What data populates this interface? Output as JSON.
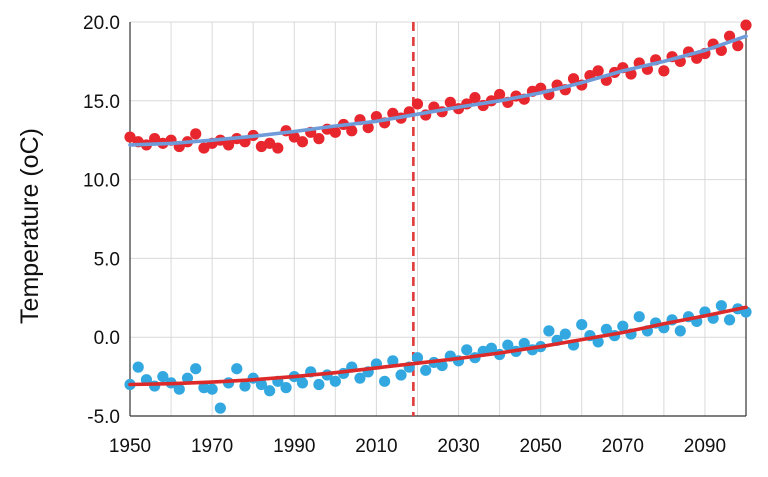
{
  "chart_data": {
    "type": "scatter",
    "title": "",
    "xlabel": "",
    "ylabel": "Temperature (oC)",
    "xlim": [
      1950,
      2100
    ],
    "ylim": [
      -5.0,
      20.0
    ],
    "grid": true,
    "legend": "none",
    "x_ticks": [
      "1950",
      "1970",
      "1990",
      "2010",
      "2030",
      "2050",
      "2070",
      "2090"
    ],
    "y_ticks": [
      "20.0",
      "15.0",
      "10.0",
      "5.0",
      "0.0",
      "-5.0"
    ],
    "reference_line": {
      "x": 2019,
      "color": "#e03a3a",
      "style": "dashed"
    },
    "colors": {
      "upper_points": "#e8262d",
      "upper_trend": "#6f9bd8",
      "lower_points": "#33a8e0",
      "lower_trend": "#dc2a2a",
      "grid": "#d9d9d9"
    },
    "series": [
      {
        "role": "upper-points",
        "x": [
          1950,
          1952,
          1954,
          1956,
          1958,
          1960,
          1962,
          1964,
          1966,
          1968,
          1970,
          1972,
          1974,
          1976,
          1978,
          1980,
          1982,
          1984,
          1986,
          1988,
          1990,
          1992,
          1994,
          1996,
          1998,
          2000,
          2002,
          2004,
          2006,
          2008,
          2010,
          2012,
          2014,
          2016,
          2018,
          2020,
          2022,
          2024,
          2026,
          2028,
          2030,
          2032,
          2034,
          2036,
          2038,
          2040,
          2042,
          2044,
          2046,
          2048,
          2050,
          2052,
          2054,
          2056,
          2058,
          2060,
          2062,
          2064,
          2066,
          2068,
          2070,
          2072,
          2074,
          2076,
          2078,
          2080,
          2082,
          2084,
          2086,
          2088,
          2090,
          2092,
          2094,
          2096,
          2098,
          2100
        ],
        "y": [
          12.7,
          12.4,
          12.2,
          12.6,
          12.3,
          12.5,
          12.1,
          12.4,
          12.9,
          12.0,
          12.3,
          12.5,
          12.2,
          12.6,
          12.4,
          12.8,
          12.1,
          12.3,
          12.0,
          13.1,
          12.7,
          12.4,
          13.0,
          12.6,
          13.2,
          13.0,
          13.5,
          13.1,
          13.8,
          13.3,
          14.0,
          13.6,
          14.2,
          13.9,
          14.3,
          14.8,
          14.1,
          14.6,
          14.3,
          14.9,
          14.5,
          14.8,
          15.2,
          14.7,
          15.0,
          15.4,
          14.9,
          15.3,
          15.1,
          15.6,
          15.8,
          15.4,
          16.0,
          15.7,
          16.4,
          16.0,
          16.6,
          16.9,
          16.3,
          16.8,
          17.1,
          16.7,
          17.4,
          17.0,
          17.6,
          16.9,
          17.8,
          17.5,
          18.1,
          17.7,
          18.0,
          18.6,
          18.2,
          19.1,
          18.5,
          19.8
        ]
      },
      {
        "role": "upper-trend",
        "x": [
          1950,
          1960,
          1970,
          1980,
          1990,
          2000,
          2010,
          2020,
          2030,
          2040,
          2050,
          2060,
          2070,
          2080,
          2090,
          2100
        ],
        "y": [
          12.2,
          12.3,
          12.5,
          12.75,
          13.05,
          13.4,
          13.7,
          14.15,
          14.6,
          15.0,
          15.5,
          16.15,
          16.9,
          17.5,
          18.2,
          19.1
        ]
      },
      {
        "role": "lower-points",
        "x": [
          1950,
          1952,
          1954,
          1956,
          1958,
          1960,
          1962,
          1964,
          1966,
          1968,
          1970,
          1972,
          1974,
          1976,
          1978,
          1980,
          1982,
          1984,
          1986,
          1988,
          1990,
          1992,
          1994,
          1996,
          1998,
          2000,
          2002,
          2004,
          2006,
          2008,
          2010,
          2012,
          2014,
          2016,
          2018,
          2020,
          2022,
          2024,
          2026,
          2028,
          2030,
          2032,
          2034,
          2036,
          2038,
          2040,
          2042,
          2044,
          2046,
          2048,
          2050,
          2052,
          2054,
          2056,
          2058,
          2060,
          2062,
          2064,
          2066,
          2068,
          2070,
          2072,
          2074,
          2076,
          2078,
          2080,
          2082,
          2084,
          2086,
          2088,
          2090,
          2092,
          2094,
          2096,
          2098,
          2100
        ],
        "y": [
          -3.0,
          -1.9,
          -2.7,
          -3.1,
          -2.5,
          -2.9,
          -3.3,
          -2.6,
          -2.0,
          -3.2,
          -3.3,
          -4.5,
          -2.9,
          -2.0,
          -3.1,
          -2.6,
          -3.0,
          -3.4,
          -2.8,
          -3.2,
          -2.5,
          -2.9,
          -2.2,
          -3.0,
          -2.4,
          -2.8,
          -2.3,
          -1.9,
          -2.6,
          -2.2,
          -1.7,
          -2.8,
          -1.5,
          -2.4,
          -1.9,
          -1.3,
          -2.1,
          -1.6,
          -1.8,
          -1.2,
          -1.5,
          -0.8,
          -1.3,
          -0.9,
          -0.7,
          -1.1,
          -0.5,
          -0.9,
          -0.4,
          -0.8,
          -0.6,
          0.4,
          -0.2,
          0.2,
          -0.5,
          0.8,
          0.1,
          -0.3,
          0.5,
          0.1,
          0.7,
          0.2,
          1.3,
          0.4,
          0.9,
          0.6,
          1.1,
          0.4,
          1.3,
          1.0,
          1.6,
          1.2,
          2.0,
          1.1,
          1.8,
          1.6
        ]
      },
      {
        "role": "lower-trend",
        "x": [
          1950,
          1960,
          1970,
          1980,
          1990,
          2000,
          2010,
          2020,
          2030,
          2040,
          2050,
          2060,
          2070,
          2080,
          2090,
          2100
        ],
        "y": [
          -3.0,
          -2.95,
          -2.85,
          -2.7,
          -2.5,
          -2.25,
          -1.95,
          -1.65,
          -1.35,
          -1.0,
          -0.6,
          -0.15,
          0.3,
          0.85,
          1.35,
          1.9
        ]
      }
    ]
  }
}
